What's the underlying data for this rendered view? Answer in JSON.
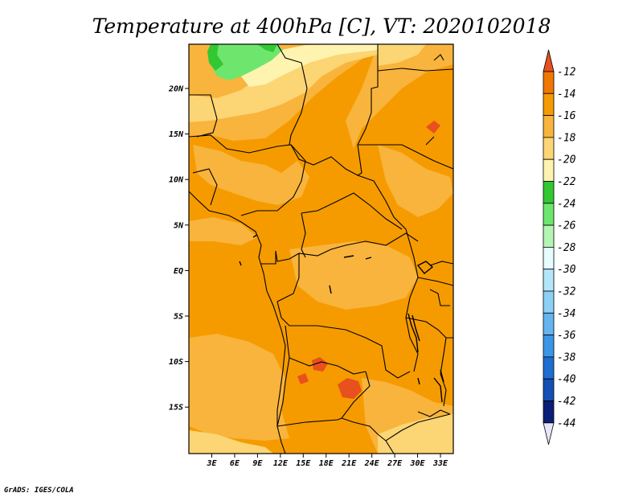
{
  "title": "Temperature at 400hPa [C], VT: 2020102018",
  "credit": "GrADS: IGES/COLA",
  "map": {
    "lon_ticks": [
      "3E",
      "6E",
      "9E",
      "12E",
      "15E",
      "18E",
      "21E",
      "24E",
      "27E",
      "30E",
      "33E"
    ],
    "lat_ticks": [
      "20N",
      "15N",
      "10N",
      "5N",
      "EQ",
      "5S",
      "10S",
      "15S"
    ]
  },
  "colorbar": {
    "labels": [
      "-12",
      "-14",
      "-16",
      "-18",
      "-20",
      "-22",
      "-24",
      "-26",
      "-28",
      "-30",
      "-32",
      "-34",
      "-36",
      "-38",
      "-40",
      "-42",
      "-44"
    ],
    "colors": [
      "#e8501e",
      "#f07800",
      "#f59b00",
      "#f8b43c",
      "#fcd574",
      "#fff3b0",
      "#32c832",
      "#6ee66e",
      "#b4f5b4",
      "#e6fcff",
      "#b4e6fa",
      "#8cd0f5",
      "#64b4f0",
      "#3c96e6",
      "#1e6ed2",
      "#1450b4",
      "#0a1e78",
      "#e6e6fa"
    ]
  },
  "colors": {
    "field_orange": "#f59b00",
    "field_light": "#f8b43c",
    "field_pale": "#fcd574",
    "field_cream": "#fff3b0",
    "field_green": "#6ee66e",
    "field_green_dark": "#32c832",
    "field_red": "#e8501e"
  }
}
